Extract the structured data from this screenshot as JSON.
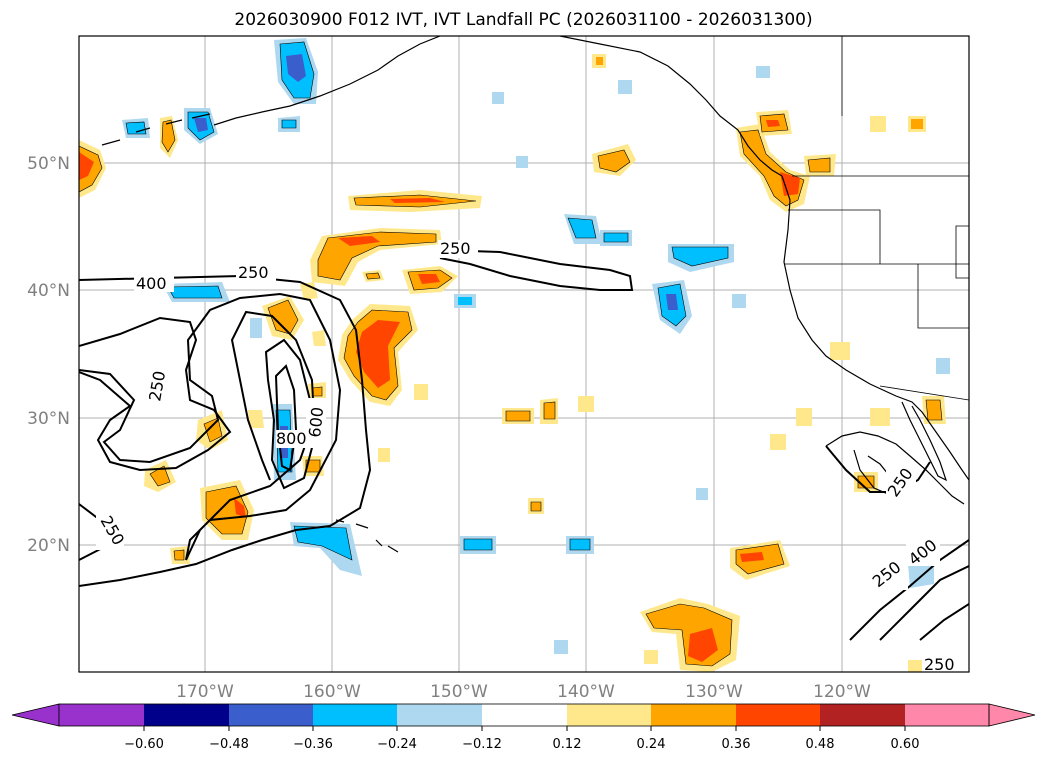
{
  "title": "2026030900 F012 IVT, IVT Landfall PC (2026031100 - 2026031300)",
  "latitude_labels": [
    "50°N",
    "40°N",
    "30°N",
    "20°N"
  ],
  "longitude_labels": [
    "170°W",
    "160°W",
    "150°W",
    "140°W",
    "130°W",
    "120°W"
  ],
  "colorbar": {
    "tick_labels": [
      "−0.60",
      "−0.48",
      "−0.36",
      "−0.24",
      "−0.12",
      "0.12",
      "0.24",
      "0.36",
      "0.48",
      "0.60"
    ],
    "colors": [
      "#9932cc",
      "#00008b",
      "#3a5fcd",
      "#00bfff",
      "#add8f0",
      "#ffffff",
      "#ffe88c",
      "#ffa500",
      "#ff4500",
      "#b22222",
      "#ff88aa"
    ]
  },
  "contour_labels": [
    "250",
    "250",
    "400",
    "250",
    "800",
    "600",
    "250",
    "250",
    "400",
    "250",
    "250"
  ],
  "colors": {
    "gold": "#ffe88c",
    "orange": "#ffa500",
    "red": "#ff4500",
    "light_blue": "#add8f0",
    "cyan": "#00bfff",
    "blue": "#3a5fcd"
  }
}
